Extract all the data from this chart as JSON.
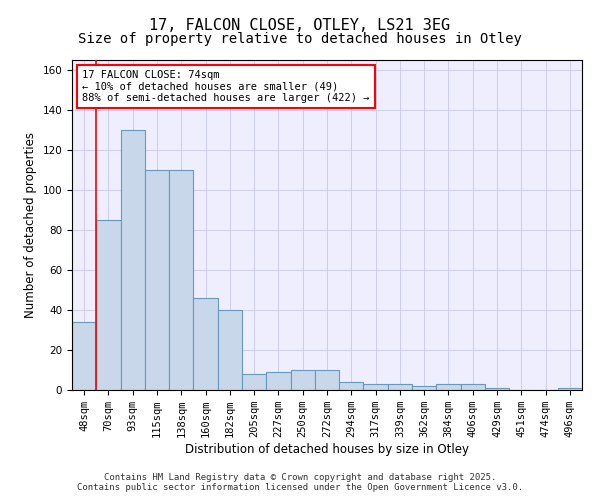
{
  "title": "17, FALCON CLOSE, OTLEY, LS21 3EG",
  "subtitle": "Size of property relative to detached houses in Otley",
  "xlabel": "Distribution of detached houses by size in Otley",
  "ylabel": "Number of detached properties",
  "categories": [
    "48sqm",
    "70sqm",
    "93sqm",
    "115sqm",
    "138sqm",
    "160sqm",
    "182sqm",
    "205sqm",
    "227sqm",
    "250sqm",
    "272sqm",
    "294sqm",
    "317sqm",
    "339sqm",
    "362sqm",
    "384sqm",
    "406sqm",
    "429sqm",
    "451sqm",
    "474sqm",
    "496sqm"
  ],
  "values": [
    34,
    85,
    130,
    110,
    110,
    46,
    40,
    8,
    9,
    10,
    10,
    4,
    3,
    3,
    2,
    3,
    3,
    1,
    0,
    0,
    1
  ],
  "bar_color": "#c8d8ea",
  "bar_edge_color": "#6699bb",
  "redline_x": 1.5,
  "annotation_text": "17 FALCON CLOSE: 74sqm\n← 10% of detached houses are smaller (49)\n88% of semi-detached houses are larger (422) →",
  "annotation_box_color": "white",
  "annotation_box_edge_color": "red",
  "ylim": [
    0,
    165
  ],
  "yticks": [
    0,
    20,
    40,
    60,
    80,
    100,
    120,
    140,
    160
  ],
  "grid_color": "#ccccee",
  "background_color": "#eeeeff",
  "footer_line1": "Contains HM Land Registry data © Crown copyright and database right 2025.",
  "footer_line2": "Contains public sector information licensed under the Open Government Licence v3.0.",
  "title_fontsize": 11,
  "subtitle_fontsize": 10,
  "axis_label_fontsize": 8.5,
  "tick_fontsize": 7.5,
  "annotation_fontsize": 7.5
}
